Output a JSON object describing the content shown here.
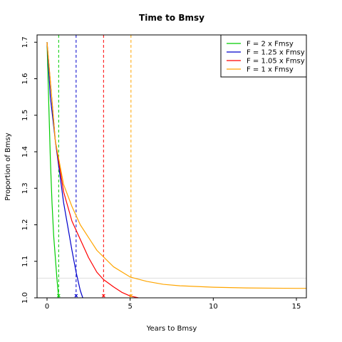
{
  "chart_data": {
    "type": "line",
    "title": "Time to Bmsy",
    "xlabel": "Years to Bmsy",
    "ylabel": "Proportion of Bmsy",
    "xlim": [
      -0.6,
      15.6
    ],
    "ylim": [
      1.0,
      1.72
    ],
    "xticks": [
      0,
      5,
      10,
      15
    ],
    "yticks": [
      1.0,
      1.1,
      1.2,
      1.3,
      1.4,
      1.5,
      1.6,
      1.7
    ],
    "xtick_labels": [
      "0",
      "5",
      "10",
      "15"
    ],
    "ytick_labels": [
      "1.0",
      "1.1",
      "1.2",
      "1.3",
      "1.4",
      "1.5",
      "1.6",
      "1.7"
    ],
    "grid": false,
    "legend_position": "top-right",
    "series": [
      {
        "name": "F = 2 x Fmsy",
        "color": "#00cc00",
        "x": [
          0,
          0.1,
          0.2,
          0.3,
          0.4,
          0.5,
          0.6,
          0.7
        ],
        "y": [
          1.7,
          1.54,
          1.38,
          1.26,
          1.17,
          1.11,
          1.05,
          1.0
        ],
        "marker_year": 0.7
      },
      {
        "name": "F = 1.25 x Fmsy",
        "color": "#0000cc",
        "x": [
          0,
          0.2,
          0.5,
          1.0,
          1.5,
          1.75,
          2.0,
          2.15
        ],
        "y": [
          1.7,
          1.55,
          1.43,
          1.26,
          1.13,
          1.07,
          1.02,
          1.0
        ],
        "marker_year": 1.75
      },
      {
        "name": "F = 1.05 x Fmsy",
        "color": "#ff0000",
        "x": [
          0,
          0.5,
          1,
          1.5,
          2,
          2.5,
          3,
          3.4,
          4,
          4.5,
          5,
          5.5
        ],
        "y": [
          1.7,
          1.43,
          1.29,
          1.21,
          1.16,
          1.11,
          1.07,
          1.05,
          1.03,
          1.015,
          1.005,
          1.0
        ],
        "marker_year": 3.4
      },
      {
        "name": "F = 1 x Fmsy",
        "color": "#ffa500",
        "x": [
          0,
          0.5,
          1,
          1.5,
          2,
          3,
          4,
          5,
          6,
          7,
          8,
          10,
          12,
          15,
          15.6
        ],
        "y": [
          1.7,
          1.43,
          1.31,
          1.25,
          1.2,
          1.13,
          1.085,
          1.057,
          1.045,
          1.037,
          1.033,
          1.029,
          1.027,
          1.026,
          1.026
        ],
        "marker_year": 5.05
      }
    ],
    "reference_line": {
      "y": 1.054,
      "color": "#dddddd"
    }
  }
}
